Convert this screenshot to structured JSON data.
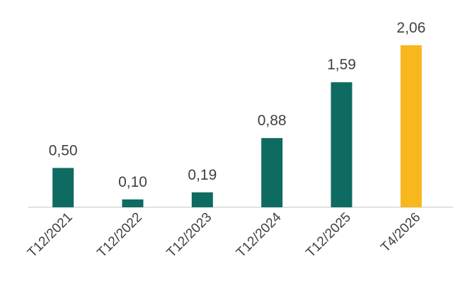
{
  "chart_data": {
    "type": "bar",
    "categories": [
      "T12/2021",
      "T12/2022",
      "T12/2023",
      "T12/2024",
      "T12/2025",
      "T4/2026"
    ],
    "values": [
      0.5,
      0.1,
      0.19,
      0.88,
      1.59,
      2.06
    ],
    "value_labels": [
      "0,50",
      "0,10",
      "0,19",
      "0,88",
      "1,59",
      "2,06"
    ],
    "colors": [
      "#0e6b61",
      "#0e6b61",
      "#0e6b61",
      "#0e6b61",
      "#0e6b61",
      "#f8b71c"
    ]
  }
}
